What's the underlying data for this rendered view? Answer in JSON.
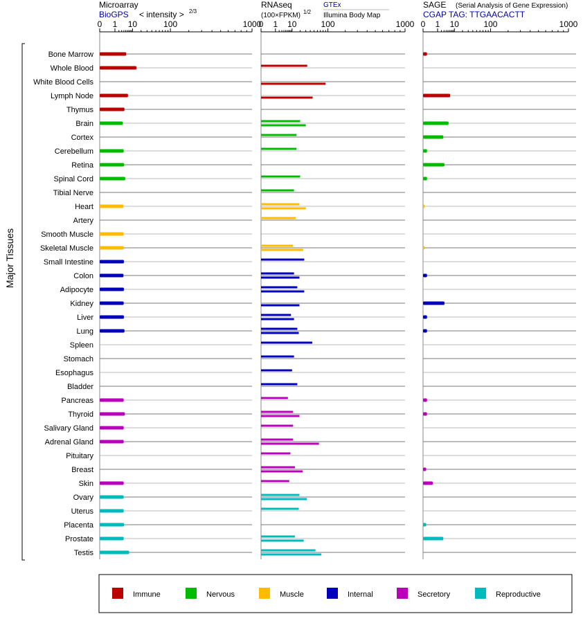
{
  "panels": {
    "microarray": {
      "title": "Microarray",
      "source": "BioGPS",
      "metric": "< intensity >",
      "metric_exp": "2/3"
    },
    "rnaseq": {
      "title": "RNAseq",
      "metric": "(100×FPKM)",
      "metric_exp": "1/2",
      "legend_top": "GTEx",
      "legend_bottom": "Illumina Body Map"
    },
    "sage": {
      "title": "SAGE",
      "subtitle": "(Serial Analysis of Gene Expression)",
      "tag": "CGAP TAG: TTGAACACTT"
    }
  },
  "y_axis_label": "Major Tissues",
  "legend": [
    {
      "name": "Immune",
      "color": "#bb0000"
    },
    {
      "name": "Nervous",
      "color": "#00bb00"
    },
    {
      "name": "Muscle",
      "color": "#ffbb00"
    },
    {
      "name": "Internal",
      "color": "#0000bb"
    },
    {
      "name": "Secretory",
      "color": "#bb00bb"
    },
    {
      "name": "Reproductive",
      "color": "#00bbbb"
    }
  ],
  "chart_data": [
    {
      "type": "bar",
      "title": "Microarray",
      "xscale": "power 1/3",
      "xlim": [
        0,
        1000
      ],
      "tick_labels": [
        "0",
        "1",
        "10",
        "100",
        "1000"
      ],
      "categories": [
        "Bone Marrow",
        "Whole Blood",
        "White Blood Cells",
        "Lymph Node",
        "Thymus",
        "Brain",
        "Cortex",
        "Cerebellum",
        "Retina",
        "Spinal Cord",
        "Tibial Nerve",
        "Heart",
        "Artery",
        "Smooth Muscle",
        "Skeletal Muscle",
        "Small Intestine",
        "Colon",
        "Adipocyte",
        "Kidney",
        "Liver",
        "Lung",
        "Spleen",
        "Stomach",
        "Esophagus",
        "Bladder",
        "Pancreas",
        "Thyroid",
        "Salivary Gland",
        "Adrenal Gland",
        "Pituitary",
        "Breast",
        "Skin",
        "Ovary",
        "Uterus",
        "Placenta",
        "Prostate",
        "Testis"
      ],
      "groups": [
        "Immune",
        "Immune",
        "Immune",
        "Immune",
        "Immune",
        "Nervous",
        "Nervous",
        "Nervous",
        "Nervous",
        "Nervous",
        "Nervous",
        "Muscle",
        "Muscle",
        "Muscle",
        "Muscle",
        "Internal",
        "Internal",
        "Internal",
        "Internal",
        "Internal",
        "Internal",
        "Internal",
        "Internal",
        "Internal",
        "Internal",
        "Secretory",
        "Secretory",
        "Secretory",
        "Secretory",
        "Secretory",
        "Secretory",
        "Secretory",
        "Reproductive",
        "Reproductive",
        "Reproductive",
        "Reproductive",
        "Reproductive"
      ],
      "values": [
        5.3,
        14,
        null,
        6.4,
        4.3,
        3.5,
        null,
        3.9,
        4.1,
        4.7,
        null,
        3.8,
        null,
        3.9,
        3.9,
        4,
        3.8,
        4,
        3.9,
        4,
        4.3,
        null,
        null,
        null,
        null,
        3.9,
        4.5,
        3.9,
        3.9,
        null,
        null,
        3.9,
        3.9,
        3.9,
        4.1,
        3.9,
        7.2
      ]
    },
    {
      "type": "bar",
      "title": "RNAseq",
      "xscale": "power 1/3",
      "xlim": [
        0,
        1000
      ],
      "tick_labels": [
        "0",
        "1",
        "10",
        "100",
        "1000"
      ],
      "series": [
        {
          "name": "GTEx",
          "values": [
            null,
            33,
            null,
            null,
            null,
            20,
            15,
            15,
            null,
            20,
            12,
            19,
            14,
            null,
            11,
            27,
            12,
            16,
            null,
            9,
            16,
            45,
            12,
            10,
            16,
            6.5,
            11,
            11,
            11,
            8.5,
            13,
            7.5,
            19,
            18,
            null,
            13,
            54
          ]
        },
        {
          "name": "Illumina Body Map",
          "values": [
            null,
            null,
            90,
            46,
            null,
            30,
            null,
            null,
            null,
            null,
            null,
            30,
            null,
            null,
            25,
            null,
            19,
            27,
            19,
            12,
            18,
            null,
            null,
            null,
            null,
            null,
            19,
            null,
            65,
            null,
            24,
            null,
            32,
            null,
            null,
            26,
            73
          ]
        }
      ]
    },
    {
      "type": "bar",
      "title": "SAGE",
      "xscale": "power 1/3",
      "xlim": [
        0,
        1000
      ],
      "tick_labels": [
        "0",
        "1",
        "10",
        "100",
        "1000"
      ],
      "values": [
        0.02,
        null,
        null,
        6.5,
        null,
        5.4,
        2.7,
        0.02,
        3.2,
        0.02,
        null,
        0.001,
        null,
        null,
        0.001,
        null,
        0.02,
        null,
        3.2,
        0.02,
        0.02,
        null,
        null,
        null,
        null,
        0.02,
        0.02,
        null,
        null,
        null,
        0.01,
        0.3,
        null,
        null,
        0.01,
        2.7,
        null
      ]
    }
  ]
}
